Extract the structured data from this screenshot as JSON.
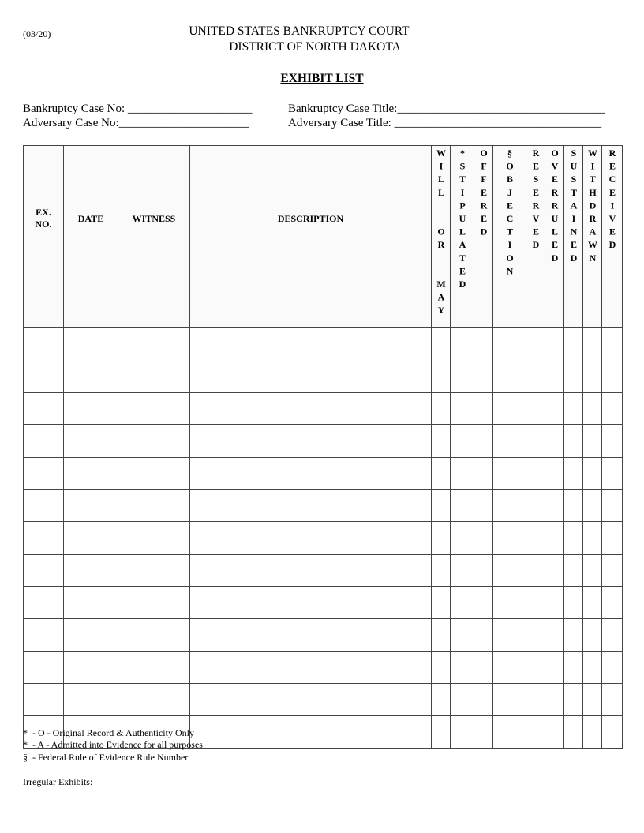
{
  "revision": "(03/20)",
  "court": [
    "UNITED STATES BANKRUPTCY COURT",
    "DISTRICT OF NORTH DAKOTA"
  ],
  "title": "EXHIBIT LIST",
  "fields": {
    "bk_case_no": "Bankruptcy Case No: _____________________",
    "adv_case_no": "Adversary Case No:______________________",
    "bk_case_title": "Bankruptcy Case Title:___________________________________",
    "adv_case_title": "Adversary Case Title: ___________________________________"
  },
  "columns": [
    "EX.\nNO.",
    "DATE",
    "WITNESS",
    "DESCRIPTION"
  ],
  "vcolumns": [
    "WILL  OR  MAY",
    "*STIPULATED",
    "OFFERED",
    "§OBJECTION",
    "RESERVED",
    "OVERRULED",
    "SUSTAINED",
    "WITHDRAWN",
    "RECEIVED"
  ],
  "row_count": 13,
  "notes": [
    "*  - O - Original Record & Authenticity Only",
    "*  - A - Admitted into Evidence for all purposes",
    "§  - Federal Rule of Evidence Rule Number"
  ],
  "irregular": "Irregular Exhibits: ____________________________________________________________________________________________"
}
